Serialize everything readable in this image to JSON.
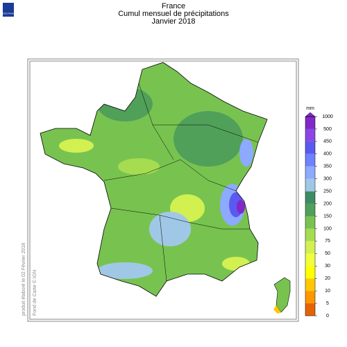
{
  "header": {
    "logo": "METEO FRANCE",
    "title": "France",
    "subtitle": "Cumul mensuel de précipitations",
    "period": "Janvier 2018"
  },
  "legend": {
    "unit": "mm",
    "ticks": [
      0,
      5,
      10,
      20,
      30,
      50,
      75,
      100,
      150,
      200,
      250,
      300,
      350,
      400,
      450,
      500,
      1000
    ],
    "colors": [
      "#e66400",
      "#ff9600",
      "#ffc800",
      "#ffff00",
      "#f0ff3c",
      "#d2f050",
      "#a5dc50",
      "#78c350",
      "#50a05a",
      "#3c8c64",
      "#a0c8e6",
      "#8caaff",
      "#6e82ff",
      "#5a5af0",
      "#8c46e6",
      "#8228c8"
    ]
  },
  "footer": {
    "produced": "produit élaboré le 02 Février 2018",
    "credit": "Fond de Carte © IGN"
  }
}
